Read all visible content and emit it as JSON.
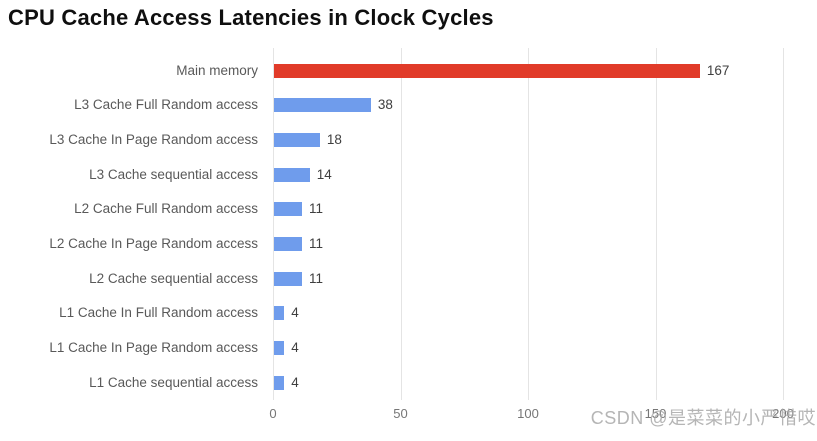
{
  "title": "CPU Cache Access Latencies in Clock Cycles",
  "watermark": "CSDN @是菜菜的小严惜哎",
  "colors": {
    "main_memory_bar": "#e13b29",
    "cache_bar": "#6f9cec",
    "gridline": "#e4e4e4",
    "category_label": "#595959",
    "value_label": "#3f3f3f",
    "tick_label": "#767676",
    "title_text": "#0f0f0f",
    "watermark_text": "#a8a8a8"
  },
  "chart_data": {
    "type": "bar",
    "orientation": "horizontal",
    "title": "CPU Cache Access Latencies in Clock Cycles",
    "categories": [
      "Main memory",
      "L3 Cache Full Random access",
      "L3 Cache In Page Random access",
      "L3 Cache sequential access",
      "L2 Cache Full Random access",
      "L2 Cache In Page Random access",
      "L2 Cache sequential access",
      "L1 Cache In Full Random access",
      "L1 Cache In Page Random access",
      "L1 Cache sequential access"
    ],
    "values": [
      167,
      38,
      18,
      14,
      11,
      11,
      11,
      4,
      4,
      4
    ],
    "bar_colors": [
      "#e13b29",
      "#6f9cec",
      "#6f9cec",
      "#6f9cec",
      "#6f9cec",
      "#6f9cec",
      "#6f9cec",
      "#6f9cec",
      "#6f9cec",
      "#6f9cec"
    ],
    "data_labels": true,
    "xlabel": "",
    "ylabel": "",
    "xlim": [
      0,
      200
    ],
    "xticks": [
      0,
      50,
      100,
      150,
      200
    ],
    "grid": "vertical",
    "legend": "none"
  }
}
